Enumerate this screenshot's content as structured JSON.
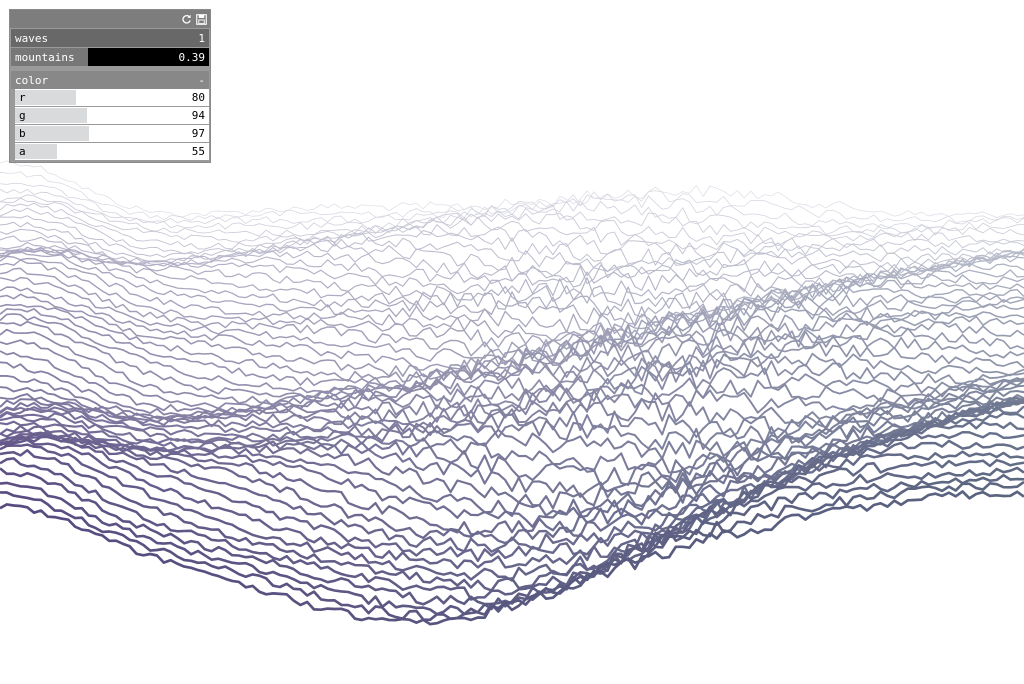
{
  "scene": {
    "line_count": 56,
    "color_front": "#574a80",
    "color_back": "#dcdde6",
    "color_right": "#5a6580"
  },
  "panel": {
    "header": {
      "refresh_icon": "refresh-icon",
      "save_icon": "save-icon"
    },
    "waves": {
      "label": "waves",
      "value": "1",
      "fraction": 0.0
    },
    "mountains": {
      "label": "mountains",
      "value": "0.39",
      "fraction": 0.39
    },
    "color_group": {
      "label": "color",
      "toggle": "-",
      "channels": [
        {
          "label": "r",
          "value": "80",
          "fraction": 0.314
        },
        {
          "label": "g",
          "value": "94",
          "fraction": 0.369
        },
        {
          "label": "b",
          "value": "97",
          "fraction": 0.38
        },
        {
          "label": "a",
          "value": "55",
          "fraction": 0.216
        }
      ]
    }
  }
}
